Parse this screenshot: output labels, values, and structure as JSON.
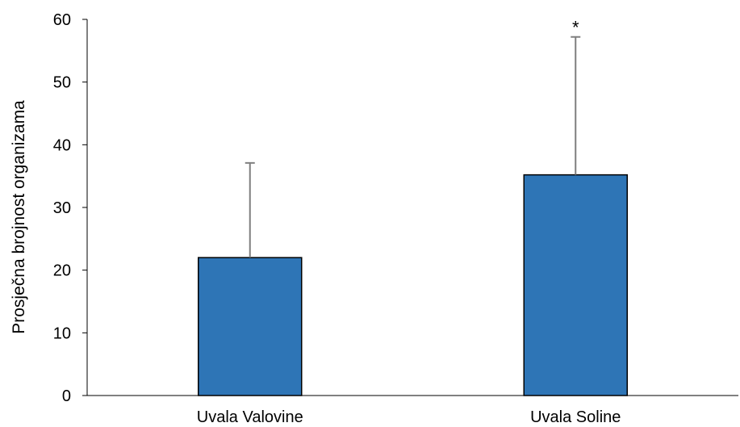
{
  "chart_data": {
    "type": "bar",
    "categories": [
      "Uvala Valovine",
      "Uvala Soline"
    ],
    "values": [
      22,
      35.2
    ],
    "error_upper": [
      37.1,
      57.2
    ],
    "annotations": [
      "",
      "*"
    ],
    "xlabel": "",
    "ylabel": "Prosječna brojnost organizama",
    "ylim": [
      0,
      60
    ],
    "yticks": [
      0,
      10,
      20,
      30,
      40,
      50,
      60
    ],
    "grid": false,
    "legend": "none",
    "bar_color": "#2e75b6",
    "bar_edge_color": "#000000",
    "error_bar_color": "#7f7f7f"
  }
}
